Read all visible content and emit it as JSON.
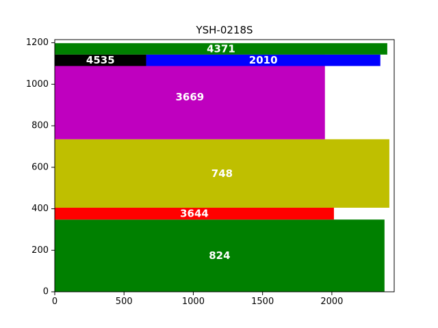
{
  "chart_data": {
    "type": "bar",
    "orientation": "horizontal",
    "layout": "treemap-like stacked rectangles",
    "title": "YSH-0218S",
    "xlabel": "",
    "ylabel": "",
    "xlim": [
      0,
      2450
    ],
    "ylim": [
      0,
      1215
    ],
    "xticks": [
      0,
      500,
      1000,
      1500,
      2000
    ],
    "yticks": [
      0,
      200,
      400,
      600,
      800,
      1000,
      1200
    ],
    "grid": false,
    "legend": "none",
    "bars": [
      {
        "label": "824",
        "x0": 0,
        "x1": 2380,
        "y0": 0,
        "y1": 348,
        "color": "#008000"
      },
      {
        "label": "3644",
        "x0": 0,
        "x1": 2015,
        "y0": 405,
        "y1": 348,
        "color": "#ff0000"
      },
      {
        "label": "748",
        "x0": 0,
        "x1": 2415,
        "y0": 405,
        "y1": 735,
        "color": "#bfbf00"
      },
      {
        "label": "3669",
        "x0": 0,
        "x1": 1950,
        "y0": 735,
        "y1": 1143,
        "color": "#bf00bf"
      },
      {
        "label": "4535",
        "x0": 0,
        "x1": 660,
        "y0": 1088,
        "y1": 1143,
        "color": "#000000"
      },
      {
        "label": "2010",
        "x0": 660,
        "x1": 2350,
        "y0": 1088,
        "y1": 1143,
        "color": "#0000ff"
      },
      {
        "label": "4371",
        "x0": 0,
        "x1": 2400,
        "y0": 1143,
        "y1": 1198,
        "color": "#008000"
      }
    ]
  }
}
